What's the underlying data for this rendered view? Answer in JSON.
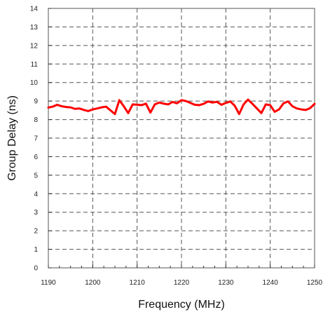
{
  "chart_data": {
    "type": "line",
    "title": "",
    "xlabel": "Frequency (MHz)",
    "ylabel": "Group Delay (ns)",
    "xlim": [
      1190,
      1250
    ],
    "ylim": [
      0,
      14
    ],
    "x_ticks": [
      "1190",
      "1200",
      "1210",
      "1220",
      "1230",
      "1240",
      "1250"
    ],
    "y_ticks": [
      "0",
      "1",
      "2",
      "3",
      "4",
      "5",
      "6",
      "7",
      "8",
      "9",
      "10",
      "11",
      "12",
      "13",
      "14"
    ],
    "grid": true,
    "legend": "none",
    "series": [
      {
        "color": "#ff0000",
        "x": [
          1190,
          1191,
          1192,
          1193,
          1194,
          1195,
          1196,
          1197,
          1198,
          1199,
          1200,
          1201,
          1202,
          1203,
          1204,
          1205,
          1206,
          1207,
          1208,
          1209,
          1210,
          1211,
          1212,
          1213,
          1214,
          1215,
          1216,
          1217,
          1218,
          1219,
          1220,
          1221,
          1222,
          1223,
          1224,
          1225,
          1226,
          1227,
          1228,
          1229,
          1230,
          1231,
          1232,
          1233,
          1234,
          1235,
          1236,
          1237,
          1238,
          1239,
          1240,
          1241,
          1242,
          1243,
          1244,
          1245,
          1246,
          1247,
          1248,
          1249,
          1250
        ],
        "y": [
          8.65,
          8.7,
          8.8,
          8.72,
          8.68,
          8.66,
          8.58,
          8.6,
          8.52,
          8.46,
          8.55,
          8.6,
          8.66,
          8.7,
          8.5,
          8.3,
          9.05,
          8.72,
          8.35,
          8.82,
          8.8,
          8.78,
          8.86,
          8.38,
          8.82,
          8.92,
          8.86,
          8.82,
          8.95,
          8.88,
          9.05,
          9.0,
          8.9,
          8.8,
          8.78,
          8.85,
          8.98,
          8.92,
          8.96,
          8.8,
          8.9,
          8.98,
          8.75,
          8.3,
          8.82,
          9.08,
          8.85,
          8.6,
          8.35,
          8.82,
          8.78,
          8.42,
          8.55,
          8.88,
          8.98,
          8.72,
          8.6,
          8.55,
          8.52,
          8.62,
          8.85
        ]
      }
    ]
  }
}
